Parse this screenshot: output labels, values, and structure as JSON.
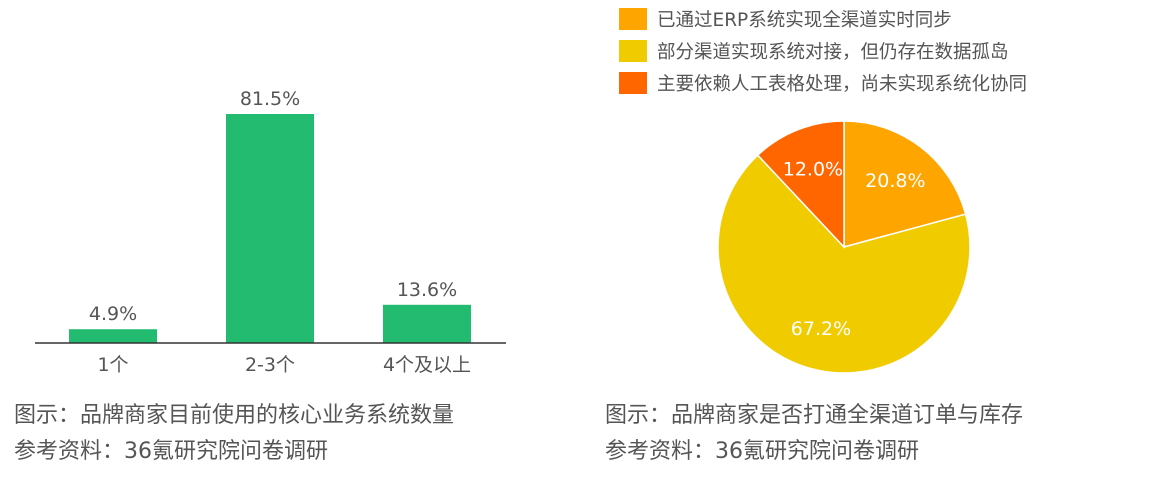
{
  "bar_chart": {
    "caption": "图示：品牌商家目前使用的核心业务系统数量",
    "source": "参考资料：36氪研究院问卷调研",
    "chart_data": {
      "type": "bar",
      "categories": [
        "1个",
        "2-3个",
        "4个及以上"
      ],
      "values": [
        4.9,
        81.5,
        13.6
      ],
      "value_labels": [
        "4.9%",
        "81.5%",
        "13.6%"
      ],
      "unit": "%",
      "title": "",
      "ylim": [
        0,
        81.5
      ],
      "grid": false,
      "color": "#22bb6f"
    }
  },
  "pie_chart": {
    "caption": "图示：品牌商家是否打通全渠道订单与库存",
    "source": "参考资料：36氪研究院问卷调研",
    "chart_data": {
      "type": "pie",
      "legend_position": "top",
      "slices": [
        {
          "label": "已通过ERP系统实现全渠道实时同步",
          "value": 20.8,
          "display": "20.8%",
          "color": "#ffa500"
        },
        {
          "label": "部分渠道实现系统对接，但仍存在数据孤岛",
          "value": 67.2,
          "display": "67.2%",
          "color": "#f0cb00"
        },
        {
          "label": "主要依赖人工表格处理，尚未实现系统化协同",
          "value": 12.0,
          "display": "12.0%",
          "color": "#ff6600"
        }
      ]
    }
  }
}
